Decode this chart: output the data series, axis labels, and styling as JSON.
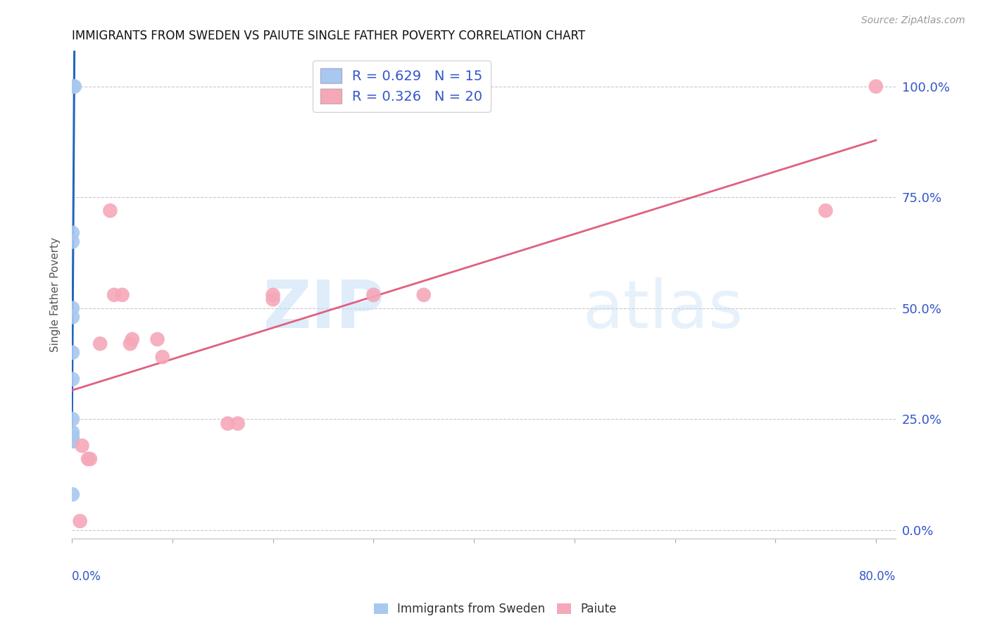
{
  "title": "IMMIGRANTS FROM SWEDEN VS PAIUTE SINGLE FATHER POVERTY CORRELATION CHART",
  "source": "Source: ZipAtlas.com",
  "ylabel": "Single Father Poverty",
  "series1_label": "Immigrants from Sweden",
  "series1_color": "#a8c8f0",
  "series1_line_color": "#2266bb",
  "series1_R": 0.629,
  "series1_N": 15,
  "series2_label": "Paiute",
  "series2_color": "#f5a8b8",
  "series2_line_color": "#e06080",
  "series2_R": 0.326,
  "series2_N": 20,
  "watermark_zip": "ZIP",
  "watermark_atlas": "atlas",
  "ytick_labels": [
    "0.0%",
    "25.0%",
    "50.0%",
    "75.0%",
    "100.0%"
  ],
  "ytick_values": [
    0.0,
    0.25,
    0.5,
    0.75,
    1.0
  ],
  "xlim": [
    0.0,
    0.82
  ],
  "ylim": [
    -0.02,
    1.08
  ],
  "sweden_x": [
    0.0005,
    0.0015,
    0.0025,
    0.0005,
    0.0005,
    0.0005,
    0.0005,
    0.0005,
    0.0005,
    0.0005,
    0.0005,
    0.0005,
    0.0005,
    0.0005,
    0.0005
  ],
  "sweden_y": [
    1.0,
    1.0,
    1.0,
    0.67,
    0.65,
    0.5,
    0.48,
    0.4,
    0.34,
    0.25,
    0.22,
    0.21,
    0.2,
    0.2,
    0.08
  ],
  "paiute_x": [
    0.8,
    0.75,
    0.35,
    0.3,
    0.2,
    0.2,
    0.165,
    0.155,
    0.09,
    0.085,
    0.06,
    0.058,
    0.05,
    0.042,
    0.038,
    0.028,
    0.018,
    0.016,
    0.01,
    0.008
  ],
  "paiute_y": [
    1.0,
    0.72,
    0.53,
    0.53,
    0.53,
    0.52,
    0.24,
    0.24,
    0.39,
    0.43,
    0.43,
    0.42,
    0.53,
    0.53,
    0.72,
    0.42,
    0.16,
    0.16,
    0.19,
    0.02
  ]
}
